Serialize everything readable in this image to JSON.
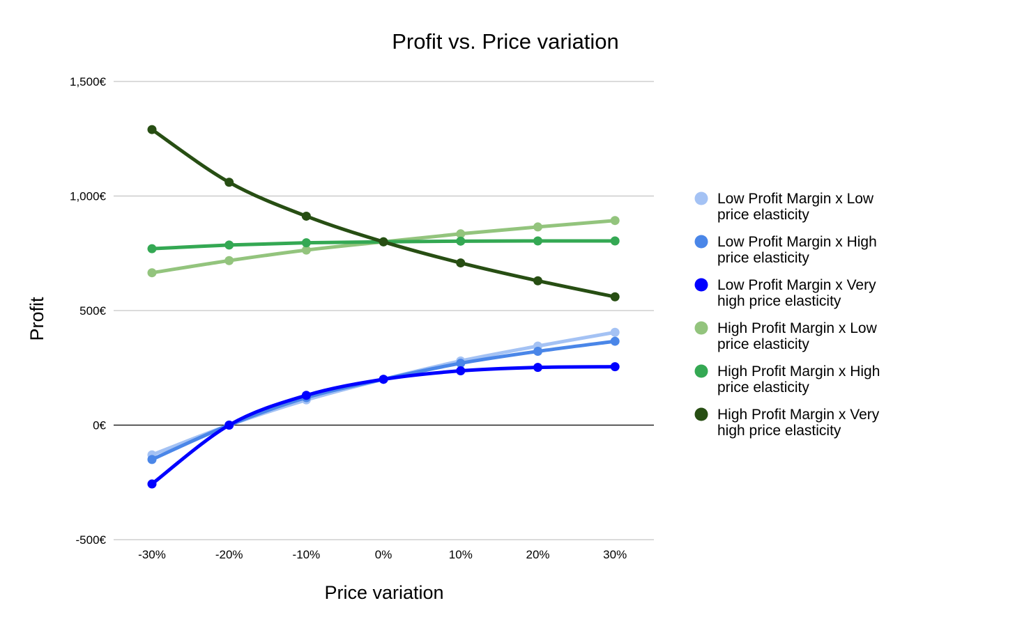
{
  "chart_data": {
    "type": "line",
    "title": "Profit vs. Price variation",
    "xlabel": "Price variation",
    "ylabel": "Profit",
    "categories": [
      "-30%",
      "-20%",
      "-10%",
      "0%",
      "10%",
      "20%",
      "30%"
    ],
    "y_ticks": [
      "-500€",
      "0€",
      "500€",
      "1,000€",
      "1,500€"
    ],
    "ylim": [
      -500,
      1500
    ],
    "grid": true,
    "legend_position": "right",
    "series": [
      {
        "name": "Low Profit Margin x Low price elasticity",
        "color": "#a4c2f4",
        "values": [
          -130,
          0,
          110,
          200,
          280,
          345,
          405
        ]
      },
      {
        "name": "Low Profit Margin x High price elasticity",
        "color": "#4a86e8",
        "values": [
          -150,
          0,
          120,
          200,
          270,
          322,
          366
        ]
      },
      {
        "name": "Low Profit Margin x Very high price elasticity",
        "color": "#0000ff",
        "values": [
          -257,
          0,
          130,
          200,
          237,
          252,
          255
        ]
      },
      {
        "name": "High Profit Margin x Low price elasticity",
        "color": "#93c47d",
        "values": [
          665,
          718,
          764,
          800,
          835,
          865,
          893
        ]
      },
      {
        "name": "High Profit Margin x High price elasticity",
        "color": "#34a853",
        "values": [
          770,
          786,
          796,
          800,
          803,
          804,
          804
        ]
      },
      {
        "name": "High Profit Margin x Very high price elasticity",
        "color": "#274e13",
        "values": [
          1290,
          1060,
          912,
          800,
          708,
          630,
          560
        ]
      }
    ]
  }
}
